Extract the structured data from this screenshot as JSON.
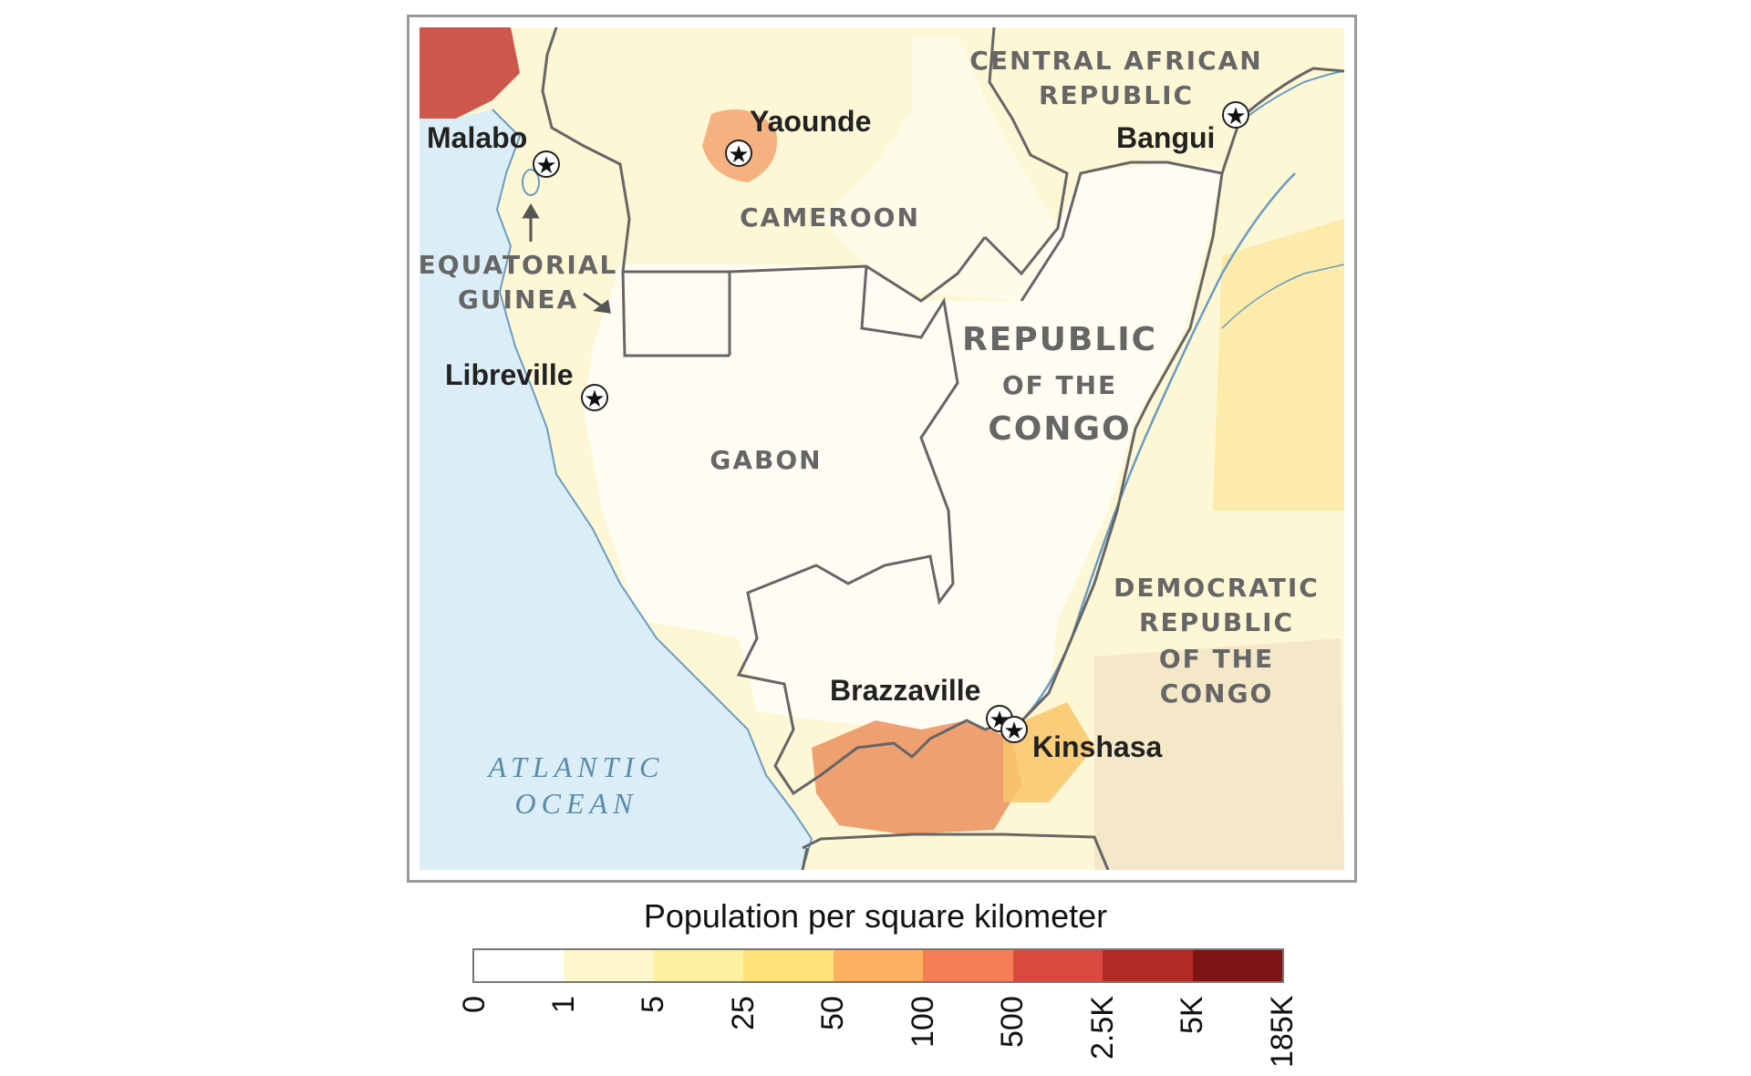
{
  "map": {
    "cities": [
      {
        "id": "malabo",
        "label": "Malabo"
      },
      {
        "id": "yaounde",
        "label": "Yaounde"
      },
      {
        "id": "bangui",
        "label": "Bangui"
      },
      {
        "id": "libreville",
        "label": "Libreville"
      },
      {
        "id": "brazzaville",
        "label": "Brazzaville"
      },
      {
        "id": "kinshasa",
        "label": "Kinshasa"
      }
    ],
    "countries": {
      "car_line1": "CENTRAL AFRICAN",
      "car_line2": "REPUBLIC",
      "cameroon": "CAMEROON",
      "eq_guinea_line1": "EQUATORIAL",
      "eq_guinea_line2": "GUINEA",
      "roc_line1": "REPUBLIC",
      "roc_line2": "OF THE",
      "roc_line3": "CONGO",
      "gabon": "GABON",
      "drc_line1": "DEMOCRATIC",
      "drc_line2": "REPUBLIC",
      "drc_line3": "OF THE",
      "drc_line4": "CONGO"
    },
    "ocean": {
      "line1": "ATLANTIC",
      "line2": "OCEAN"
    },
    "colors": {
      "ocean": "#dbeef8",
      "border": "#666666",
      "river": "#6a9cc0",
      "land_base": "#fdf7d6"
    }
  },
  "legend": {
    "title": "Population per square kilometer",
    "swatches": [
      "#ffffff",
      "#fff8cc",
      "#fdf0a0",
      "#fde37a",
      "#fdb060",
      "#f57f55",
      "#d9493f",
      "#b22a26",
      "#7d1515"
    ],
    "ticks": [
      "0",
      "1",
      "5",
      "25",
      "50",
      "100",
      "500",
      "2.5K",
      "5K",
      "185K"
    ]
  }
}
